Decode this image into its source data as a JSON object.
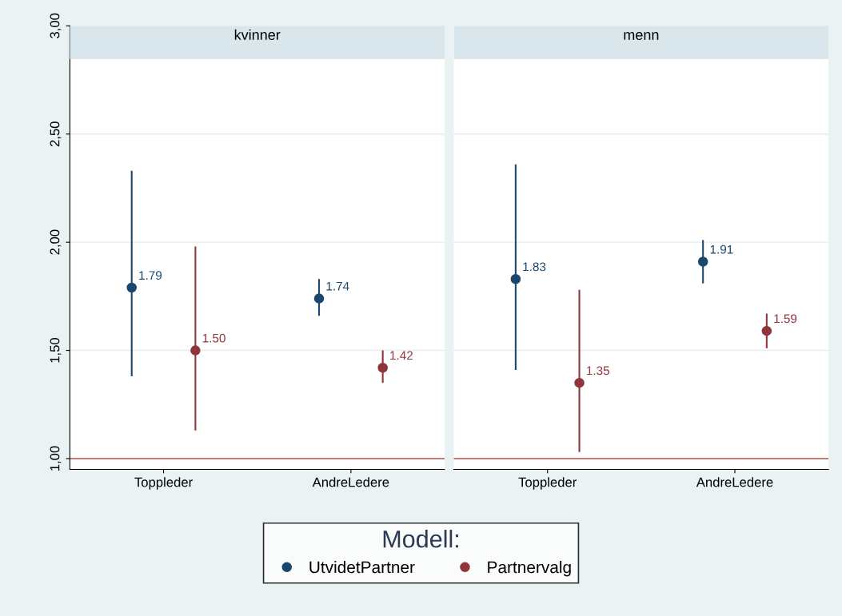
{
  "chart_data": [
    {
      "type": "scatter",
      "title": "kvinner",
      "categories": [
        "Toppleder",
        "AndreLedere"
      ],
      "marker": "circle",
      "grid": "y",
      "legend": "bottom",
      "legend_title": "Modell:",
      "ylim": [
        0.95,
        3.0
      ],
      "yticks": [
        {
          "value": 1,
          "label": "1,00"
        },
        {
          "value": 1.5,
          "label": "1,50"
        },
        {
          "value": 2,
          "label": "2,00"
        },
        {
          "value": 2.5,
          "label": "2,50"
        },
        {
          "value": 3,
          "label": "3,00"
        }
      ],
      "ref_lines": [
        {
          "axis": "y",
          "value": 1,
          "label": null,
          "color": "#c0504d"
        }
      ],
      "series": [
        {
          "name": "UtvidetPartner",
          "color": "#1a476f",
          "values": [
            1.79,
            1.74
          ],
          "value_labels": [
            "1.79",
            "1.74"
          ],
          "errors": [
            [
              1.38,
              2.33
            ],
            [
              1.66,
              1.83
            ]
          ]
        },
        {
          "name": "Partnervalg",
          "color": "#90353b",
          "values": [
            1.5,
            1.42
          ],
          "value_labels": [
            "1.50",
            "1.42"
          ],
          "errors": [
            [
              1.13,
              1.98
            ],
            [
              1.35,
              1.5
            ]
          ]
        }
      ]
    },
    {
      "type": "scatter",
      "title": "menn",
      "categories": [
        "Toppleder",
        "AndreLedere"
      ],
      "marker": "circle",
      "grid": "y",
      "tick_labels": "x",
      "ylim": [
        0.95,
        3.0
      ],
      "yticks": [
        1,
        1.5,
        2,
        2.5,
        3
      ],
      "ref_lines": [
        {
          "axis": "y",
          "value": 1,
          "label": null,
          "color": "#c0504d"
        }
      ],
      "series": [
        {
          "color": "#1a476f",
          "values": [
            1.83,
            1.91
          ],
          "value_labels": [
            "1.83",
            "1.91"
          ],
          "errors": [
            [
              1.41,
              2.36
            ],
            [
              1.81,
              2.01
            ]
          ]
        },
        {
          "color": "#90353b",
          "values": [
            1.35,
            1.59
          ],
          "value_labels": [
            "1.35",
            "1.59"
          ],
          "errors": [
            [
              1.03,
              1.78
            ],
            [
              1.51,
              1.67
            ]
          ]
        }
      ]
    }
  ]
}
